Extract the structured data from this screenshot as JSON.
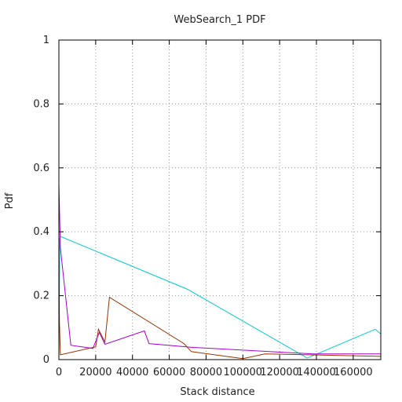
{
  "chart_data": {
    "type": "line",
    "title": "WebSearch_1 PDF",
    "xlabel": "Stack distance",
    "ylabel": "Pdf",
    "xlim": [
      0,
      175000
    ],
    "ylim": [
      0,
      1
    ],
    "x_ticks": [
      0,
      20000,
      40000,
      60000,
      80000,
      100000,
      120000,
      140000,
      160000
    ],
    "x_tick_labels": [
      "0",
      "20000",
      "40000",
      "60000",
      "80000",
      "100000",
      "120000",
      "140000",
      "160000"
    ],
    "y_ticks": [
      0,
      0.2,
      0.4,
      0.6,
      0.8,
      1
    ],
    "y_tick_labels": [
      "0",
      "0.2",
      "0.4",
      "0.6",
      "0.8",
      "1"
    ],
    "grid": true,
    "series": [
      {
        "color": "#00cccc",
        "x": [
          0,
          500,
          1000,
          70000,
          135000,
          138000,
          172000,
          175000
        ],
        "y": [
          0.03,
          0.38,
          0.385,
          0.22,
          0.005,
          0.012,
          0.095,
          0.08
        ]
      },
      {
        "color": "#993300",
        "x": [
          0,
          300,
          800,
          20000,
          21500,
          25000,
          27500,
          68000,
          72000,
          100000,
          112000,
          175000
        ],
        "y": [
          0.33,
          0.12,
          0.015,
          0.04,
          0.095,
          0.055,
          0.195,
          0.05,
          0.025,
          0.003,
          0.018,
          0.01
        ]
      },
      {
        "color": "#aa00cc",
        "x": [
          0,
          800,
          6500,
          18500,
          22000,
          25000,
          46500,
          49000,
          73000,
          138000,
          175000
        ],
        "y": [
          0.55,
          0.35,
          0.045,
          0.035,
          0.085,
          0.048,
          0.09,
          0.05,
          0.038,
          0.018,
          0.018
        ]
      }
    ]
  }
}
